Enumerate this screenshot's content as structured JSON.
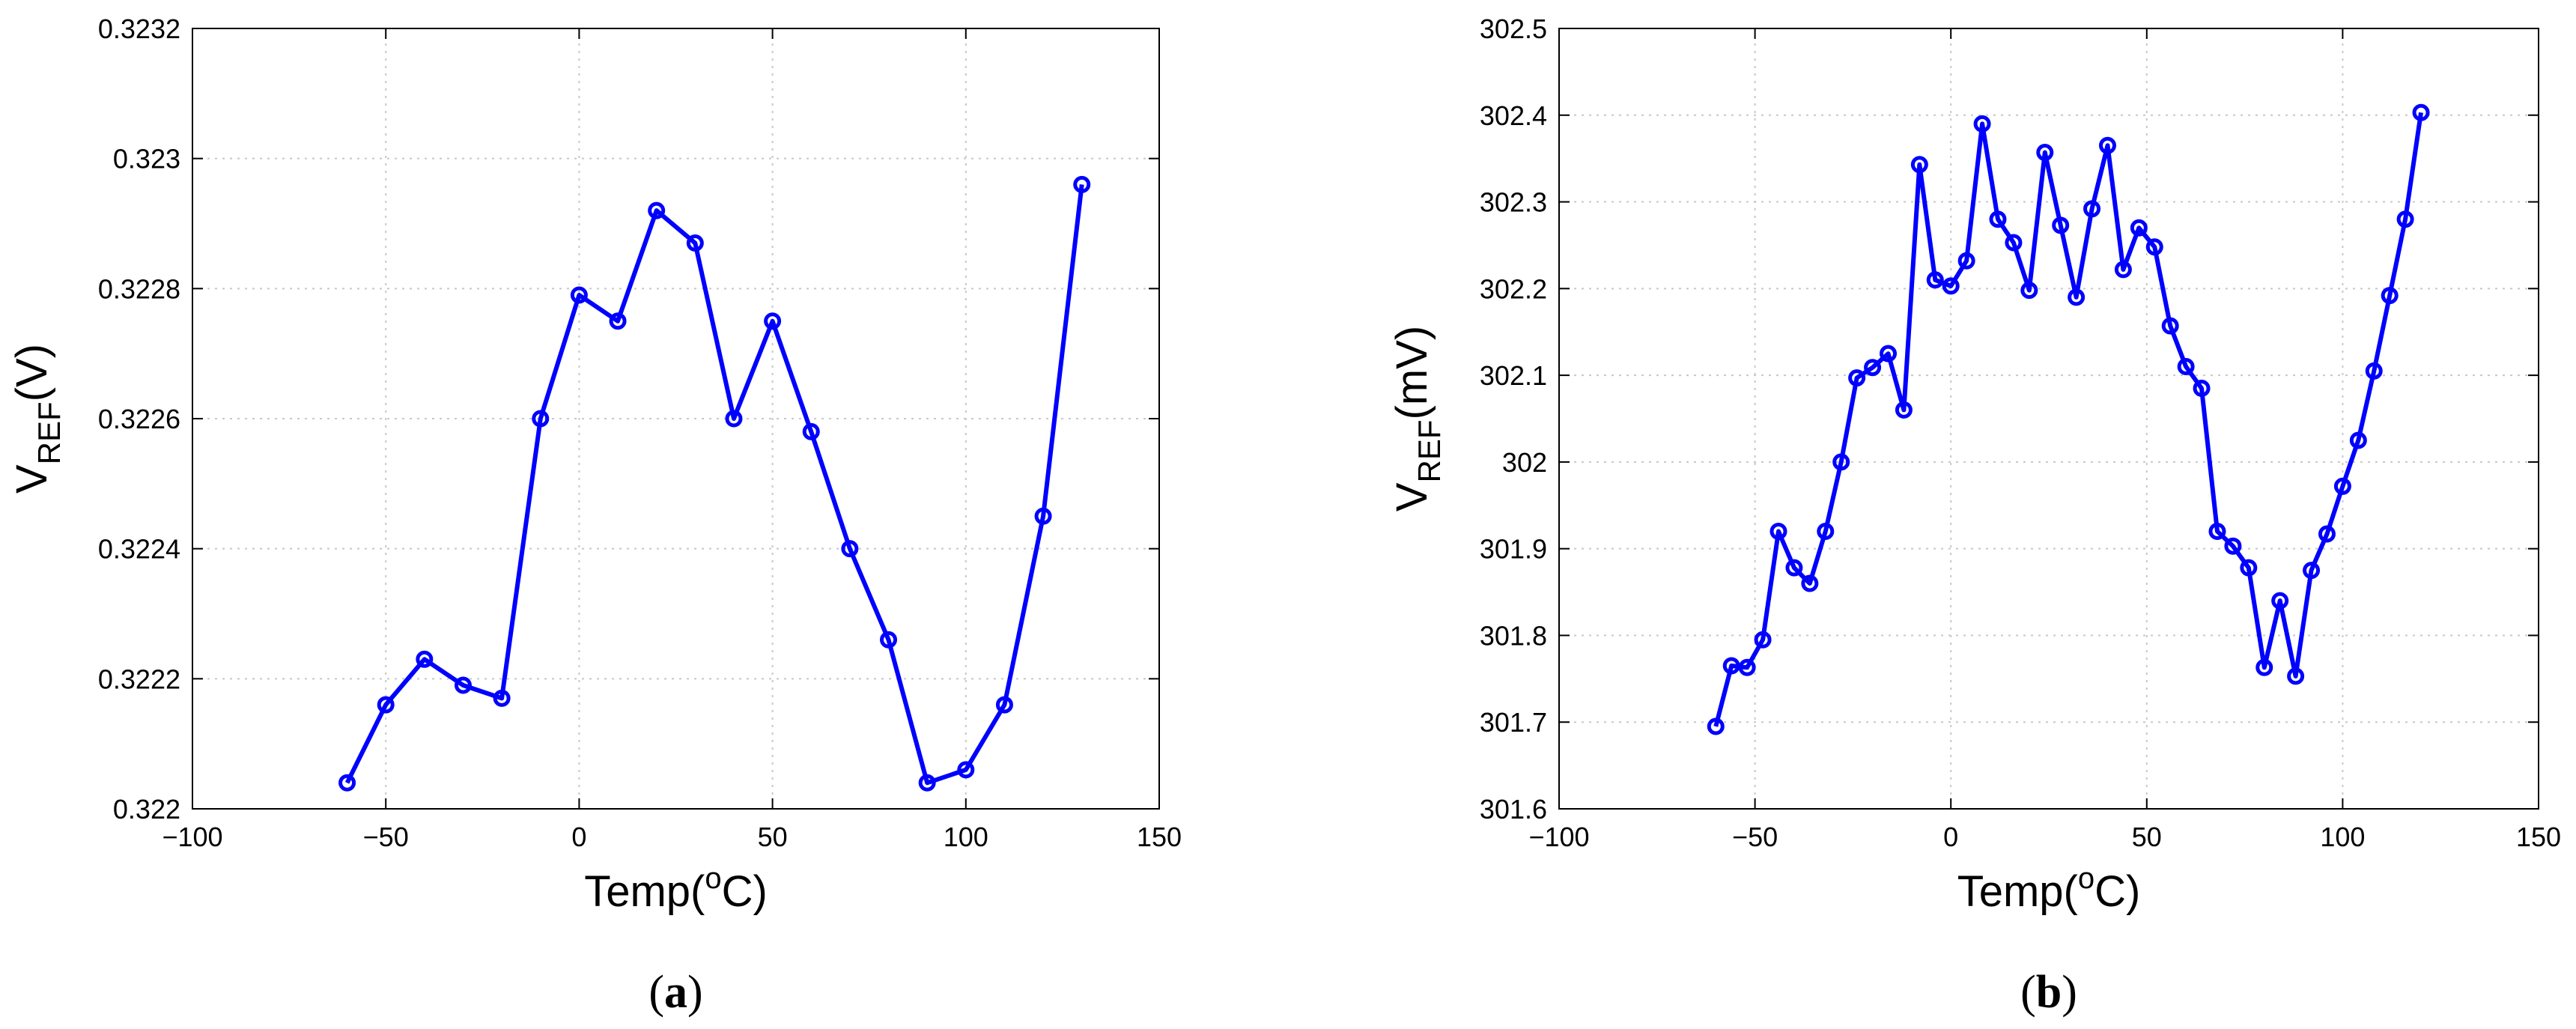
{
  "chart_data": [
    {
      "type": "line",
      "panel_label": "a",
      "xlabel": {
        "main": "Temp(",
        "sup": "o",
        "tail": "C)"
      },
      "ylabel": {
        "main": "V",
        "sub": "REF",
        "tail": "(V)"
      },
      "xlim": [
        -100,
        150
      ],
      "ylim": [
        0.322,
        0.3232
      ],
      "xticks": [
        "−100",
        "−50",
        "0",
        "50",
        "100",
        "150"
      ],
      "xtick_values": [
        -100,
        -50,
        0,
        50,
        100,
        150
      ],
      "yticks": [
        "0.322",
        "0.3222",
        "0.3224",
        "0.3226",
        "0.3228",
        "0.323",
        "0.3232"
      ],
      "ytick_values": [
        0.322,
        0.3222,
        0.3224,
        0.3226,
        0.3228,
        0.323,
        0.3232
      ],
      "grid": true,
      "color": "#0000ff",
      "marker": "circle",
      "series": [
        {
          "x": [
            -60,
            -50,
            -40,
            -30,
            -20,
            -10,
            0,
            10,
            20,
            30,
            40,
            50,
            60,
            70,
            80,
            90,
            100,
            110,
            120,
            130
          ],
          "y": [
            0.32204,
            0.32216,
            0.32223,
            0.32219,
            0.32217,
            0.3226,
            0.32279,
            0.32275,
            0.32292,
            0.32287,
            0.3226,
            0.32275,
            0.32258,
            0.3224,
            0.32226,
            0.32204,
            0.32206,
            0.32216,
            0.32245,
            0.32296
          ]
        }
      ]
    },
    {
      "type": "line",
      "panel_label": "b",
      "xlabel": {
        "main": "Temp(",
        "sup": "o",
        "tail": "C)"
      },
      "ylabel": {
        "main": "V",
        "sub": "REF",
        "tail": "(mV)"
      },
      "xlim": [
        -100,
        150
      ],
      "ylim": [
        301.6,
        302.5
      ],
      "xticks": [
        "−100",
        "−50",
        "0",
        "50",
        "100",
        "150"
      ],
      "xtick_values": [
        -100,
        -50,
        0,
        50,
        100,
        150
      ],
      "yticks": [
        "301.6",
        "301.7",
        "301.8",
        "301.9",
        "302",
        "302.1",
        "302.2",
        "302.3",
        "302.4",
        "302.5"
      ],
      "ytick_values": [
        301.6,
        301.7,
        301.8,
        301.9,
        302.0,
        302.1,
        302.2,
        302.3,
        302.4,
        302.5
      ],
      "grid": true,
      "color": "#0000ff",
      "marker": "circle",
      "series": [
        {
          "x": [
            -60,
            -56,
            -52,
            -48,
            -44,
            -40,
            -36,
            -32,
            -28,
            -24,
            -20,
            -16,
            -12,
            -8,
            -4,
            0,
            4,
            8,
            12,
            16,
            20,
            24,
            28,
            32,
            36,
            40,
            44,
            48,
            52,
            56,
            60,
            64,
            68,
            72,
            76,
            80,
            84,
            88,
            92,
            96,
            100,
            104,
            108,
            112,
            116,
            120
          ],
          "y": [
            301.695,
            301.765,
            301.763,
            301.795,
            301.92,
            301.878,
            301.86,
            301.92,
            302.0,
            302.097,
            302.109,
            302.125,
            302.06,
            302.343,
            302.21,
            302.203,
            302.232,
            302.39,
            302.28,
            302.253,
            302.198,
            302.357,
            302.273,
            302.19,
            302.292,
            302.365,
            302.222,
            302.27,
            302.248,
            302.157,
            302.11,
            302.085,
            301.92,
            301.903,
            301.878,
            301.763,
            301.84,
            301.753,
            301.875,
            301.917,
            301.972,
            302.025,
            302.105,
            302.192,
            302.28,
            302.403
          ]
        }
      ]
    }
  ]
}
